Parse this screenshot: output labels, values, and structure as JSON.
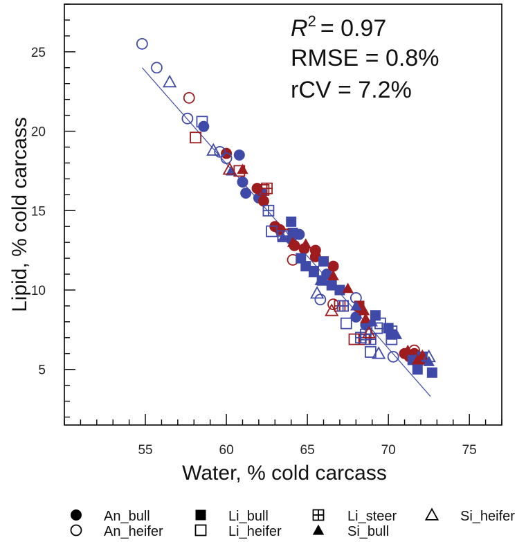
{
  "chart_data": {
    "type": "scatter",
    "xlabel": "Water, % cold carcass",
    "ylabel": "Lipid, % cold carcass",
    "xlim": [
      50,
      77
    ],
    "ylim": [
      1.5,
      28
    ],
    "xticks": [
      55,
      60,
      65,
      70,
      75
    ],
    "yticks": [
      5,
      10,
      15,
      20,
      25
    ],
    "grid": false,
    "stats": {
      "r2_symbol": "R",
      "r2_exp": "2",
      "r2_value": "= 0.97",
      "rmse": "RMSE = 0.8%",
      "rcv": "rCV = 7.2%"
    },
    "colors": {
      "blue": "#3F4AA8",
      "red": "#9E1B1E"
    },
    "regression": {
      "x": [
        54.8,
        72.6
      ],
      "y": [
        24.0,
        3.3
      ]
    },
    "legend": [
      {
        "label": "An_bull",
        "marker": "circle-filled"
      },
      {
        "label": "An_heifer",
        "marker": "circle-open"
      },
      {
        "label": "Li_bull",
        "marker": "square-filled"
      },
      {
        "label": "Li_heifer",
        "marker": "square-open"
      },
      {
        "label": "Li_steer",
        "marker": "square-cross"
      },
      {
        "label": "Si_bull",
        "marker": "triangle-filled"
      },
      {
        "label": "Si_heifer",
        "marker": "triangle-open"
      }
    ],
    "series": [
      {
        "name": "An_bull",
        "marker": "circle-filled",
        "points": [
          [
            58.6,
            20.3,
            "b"
          ],
          [
            60.8,
            18.5,
            "b"
          ],
          [
            60.0,
            18.6,
            "r"
          ],
          [
            61.0,
            16.8,
            "b"
          ],
          [
            61.2,
            16.1,
            "b"
          ],
          [
            62.0,
            15.8,
            "b"
          ],
          [
            62.2,
            16.1,
            "b"
          ],
          [
            61.9,
            16.4,
            "r"
          ],
          [
            62.3,
            15.6,
            "r"
          ],
          [
            63.0,
            14.0,
            "r"
          ],
          [
            63.3,
            13.8,
            "r"
          ],
          [
            64.0,
            13.2,
            "b"
          ],
          [
            64.5,
            13.5,
            "b"
          ],
          [
            64.2,
            12.8,
            "r"
          ],
          [
            64.8,
            12.6,
            "r"
          ],
          [
            65.5,
            12.1,
            "r"
          ],
          [
            65.5,
            12.5,
            "r"
          ],
          [
            66.2,
            11.0,
            "b"
          ],
          [
            66.6,
            11.5,
            "r"
          ],
          [
            68.0,
            8.3,
            "b"
          ],
          [
            68.2,
            8.9,
            "r"
          ],
          [
            68.6,
            7.8,
            "b"
          ],
          [
            71.0,
            6.0,
            "r"
          ],
          [
            71.3,
            5.8,
            "r"
          ],
          [
            71.6,
            6.0,
            "r"
          ],
          [
            72.0,
            5.6,
            "r"
          ]
        ]
      },
      {
        "name": "An_heifer",
        "marker": "circle-open",
        "points": [
          [
            54.8,
            25.5,
            "b"
          ],
          [
            55.7,
            24.0,
            "b"
          ],
          [
            57.7,
            22.1,
            "r"
          ],
          [
            57.6,
            20.8,
            "b"
          ],
          [
            59.6,
            18.7,
            "b"
          ],
          [
            60.0,
            18.3,
            "b"
          ],
          [
            64.1,
            11.9,
            "r"
          ],
          [
            65.8,
            9.4,
            "b"
          ],
          [
            66.6,
            9.1,
            "r"
          ],
          [
            68.0,
            9.5,
            "b"
          ],
          [
            70.3,
            5.8,
            "b"
          ],
          [
            71.6,
            6.2,
            "r"
          ]
        ]
      },
      {
        "name": "Li_bull",
        "marker": "square-filled",
        "points": [
          [
            64.0,
            14.3,
            "b"
          ],
          [
            64.1,
            13.6,
            "b"
          ],
          [
            64.6,
            12.0,
            "b"
          ],
          [
            64.9,
            11.5,
            "b"
          ],
          [
            65.4,
            11.2,
            "b"
          ],
          [
            66.0,
            11.8,
            "b"
          ],
          [
            65.9,
            10.6,
            "b"
          ],
          [
            66.5,
            10.3,
            "b"
          ],
          [
            67.0,
            10.0,
            "b"
          ],
          [
            68.2,
            9.0,
            "r"
          ],
          [
            69.2,
            8.4,
            "b"
          ],
          [
            70.0,
            7.6,
            "b"
          ],
          [
            70.2,
            7.2,
            "b"
          ],
          [
            71.5,
            5.6,
            "b"
          ],
          [
            71.8,
            5.0,
            "b"
          ],
          [
            72.1,
            5.8,
            "b"
          ],
          [
            72.7,
            4.8,
            "b"
          ]
        ]
      },
      {
        "name": "Li_heifer",
        "marker": "square-open",
        "points": [
          [
            58.5,
            20.6,
            "b"
          ],
          [
            58.1,
            19.6,
            "r"
          ],
          [
            60.8,
            17.5,
            "r"
          ],
          [
            62.3,
            16.3,
            "r"
          ],
          [
            62.8,
            13.7,
            "b"
          ],
          [
            63.5,
            13.5,
            "r"
          ],
          [
            67.4,
            7.9,
            "b"
          ],
          [
            67.9,
            6.9,
            "r"
          ],
          [
            68.5,
            6.9,
            "r"
          ],
          [
            68.9,
            6.1,
            "b"
          ],
          [
            69.3,
            7.6,
            "b"
          ],
          [
            69.5,
            7.9,
            "b"
          ],
          [
            70.2,
            6.9,
            "b"
          ],
          [
            70.2,
            7.4,
            "b"
          ]
        ]
      },
      {
        "name": "Li_steer",
        "marker": "square-cross",
        "points": [
          [
            62.5,
            16.4,
            "r"
          ],
          [
            62.6,
            15.0,
            "b"
          ],
          [
            63.5,
            13.4,
            "b"
          ],
          [
            67.0,
            9.0,
            "r"
          ],
          [
            67.2,
            9.0,
            "b"
          ],
          [
            68.3,
            7.0,
            "b"
          ],
          [
            68.6,
            7.2,
            "b"
          ],
          [
            68.9,
            6.9,
            "b"
          ]
        ]
      },
      {
        "name": "Si_bull",
        "marker": "triangle-filled",
        "points": [
          [
            60.3,
            17.5,
            "b"
          ],
          [
            61.0,
            17.6,
            "r"
          ],
          [
            63.5,
            13.3,
            "b"
          ],
          [
            64.1,
            13.0,
            "r"
          ],
          [
            64.9,
            12.9,
            "r"
          ],
          [
            65.4,
            11.1,
            "b"
          ],
          [
            65.8,
            10.6,
            "b"
          ],
          [
            66.6,
            10.9,
            "r"
          ],
          [
            67.5,
            10.1,
            "r"
          ],
          [
            68.0,
            9.0,
            "b"
          ],
          [
            68.5,
            8.7,
            "r"
          ],
          [
            68.6,
            8.2,
            "r"
          ],
          [
            69.0,
            8.0,
            "b"
          ],
          [
            70.5,
            7.2,
            "b"
          ],
          [
            71.2,
            6.2,
            "r"
          ],
          [
            71.8,
            5.6,
            "r"
          ],
          [
            72.1,
            5.9,
            "r"
          ],
          [
            72.5,
            5.5,
            "b"
          ]
        ]
      },
      {
        "name": "Si_heifer",
        "marker": "triangle-open",
        "points": [
          [
            56.5,
            23.1,
            "b"
          ],
          [
            59.2,
            18.8,
            "b"
          ],
          [
            60.2,
            17.6,
            "r"
          ],
          [
            65.6,
            9.8,
            "b"
          ],
          [
            66.5,
            8.7,
            "r"
          ],
          [
            68.8,
            7.3,
            "r"
          ],
          [
            69.4,
            6.0,
            "b"
          ],
          [
            72.5,
            5.8,
            "b"
          ]
        ]
      }
    ]
  }
}
